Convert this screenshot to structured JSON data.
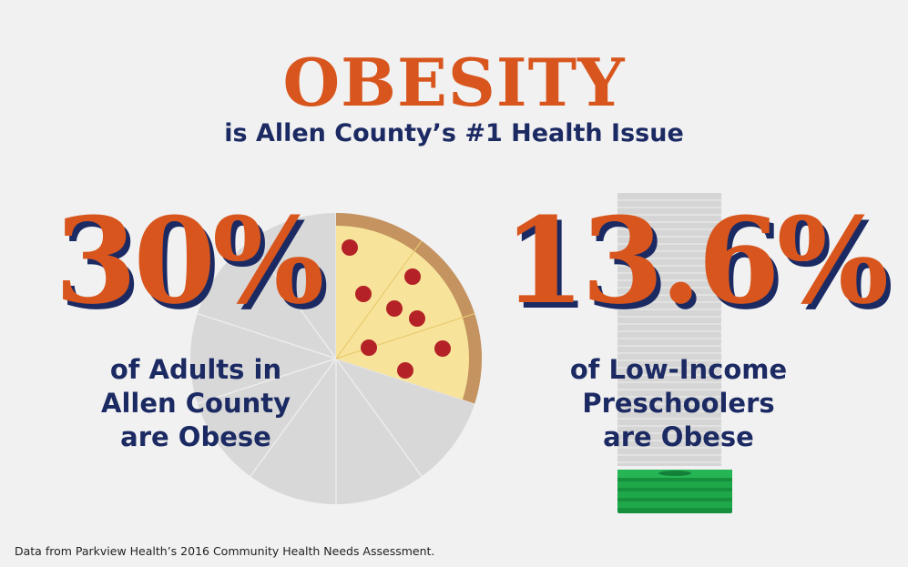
{
  "title": "OBESITY",
  "subtitle": "is Allen County’s #1 Health Issue",
  "stat_adults": {
    "value": "30%",
    "line1": "of Adults in",
    "line2": "Allen County",
    "line3": "are Obese"
  },
  "stat_preschoolers": {
    "value": "13.6%",
    "line1": "of Low-Income",
    "line2": "Preschoolers",
    "line3": "are Obese"
  },
  "source": "Data from Parkview Health’s 2016 Community Health Needs Assessment.",
  "pizza": {
    "slices_total": 10,
    "slices_highlighted": 3
  },
  "colors": {
    "accent_orange": "#d8561d",
    "navy": "#1c2a63",
    "background": "#f1f1f1",
    "pizza_grey": "#d8d8d8",
    "cheese": "#f7e49a",
    "crust": "#c4935f",
    "pepperoni": "#b42227",
    "money_green": "#1ea84a"
  }
}
